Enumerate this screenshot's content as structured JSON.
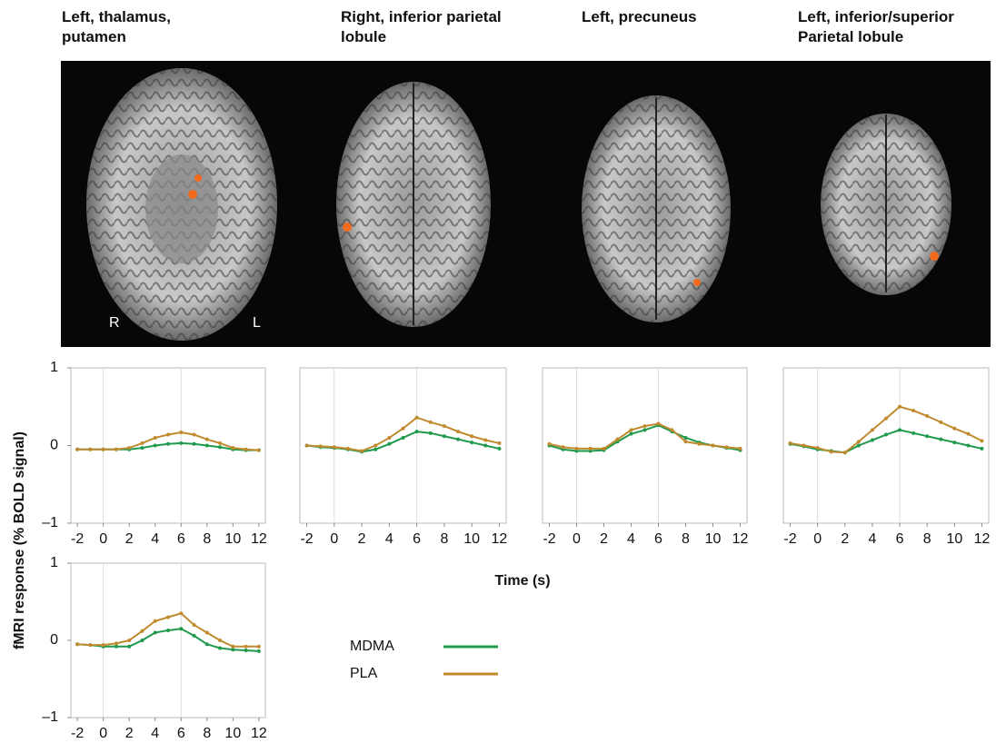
{
  "column_titles": [
    "Left, thalamus, putamen",
    "Right, inferior parietal lobule",
    "Left, precuneus",
    "Left, inferior/superior Parietal lobule"
  ],
  "image_labels": [
    "R",
    "L"
  ],
  "ylabel": "fMRI response (% BOLD signal)",
  "xlabel": "Time (s)",
  "legend": [
    {
      "name": "MDMA",
      "color": "#1f9a4c"
    },
    {
      "name": "PLA",
      "color": "#c08a2e"
    }
  ],
  "chart_data": [
    {
      "type": "line",
      "x": [
        -2,
        -1,
        0,
        1,
        2,
        3,
        4,
        5,
        6,
        7,
        8,
        9,
        10,
        11,
        12
      ],
      "xlim": [
        -2.5,
        12.5
      ],
      "xticks": [
        -2,
        0,
        2,
        4,
        6,
        8,
        10,
        12
      ],
      "vgrid": [
        0,
        6
      ],
      "ylim": [
        -1,
        1
      ],
      "yticks": [
        {
          "value": -1,
          "label": "–1"
        },
        0,
        1
      ],
      "series": [
        {
          "values": [
            -0.05,
            -0.05,
            -0.05,
            -0.05,
            -0.05,
            -0.03,
            0,
            0.02,
            0.03,
            0.02,
            0,
            -0.02,
            -0.05,
            -0.06,
            -0.06
          ]
        },
        {
          "values": [
            -0.05,
            -0.05,
            -0.05,
            -0.05,
            -0.03,
            0.03,
            0.1,
            0.14,
            0.17,
            0.14,
            0.08,
            0.03,
            -0.03,
            -0.05,
            -0.06
          ]
        }
      ]
    },
    {
      "type": "line",
      "x": [
        -2,
        -1,
        0,
        1,
        2,
        3,
        4,
        5,
        6,
        7,
        8,
        9,
        10,
        11,
        12
      ],
      "xlim": [
        -2.5,
        12.5
      ],
      "xticks": [
        -2,
        0,
        2,
        4,
        6,
        8,
        10,
        12
      ],
      "vgrid": [
        0,
        6
      ],
      "ylim": [
        -1,
        1
      ],
      "series": [
        {
          "values": [
            0,
            -0.02,
            -0.03,
            -0.05,
            -0.08,
            -0.05,
            0.02,
            0.1,
            0.18,
            0.16,
            0.12,
            0.08,
            0.04,
            0,
            -0.04
          ]
        },
        {
          "values": [
            0,
            -0.01,
            -0.02,
            -0.04,
            -0.07,
            0,
            0.1,
            0.22,
            0.36,
            0.3,
            0.25,
            0.18,
            0.12,
            0.07,
            0.03
          ]
        }
      ]
    },
    {
      "type": "line",
      "x": [
        -2,
        -1,
        0,
        1,
        2,
        3,
        4,
        5,
        6,
        7,
        8,
        9,
        10,
        11,
        12
      ],
      "xlim": [
        -2.5,
        12.5
      ],
      "xticks": [
        -2,
        0,
        2,
        4,
        6,
        8,
        10,
        12
      ],
      "vgrid": [
        0,
        6
      ],
      "ylim": [
        -1,
        1
      ],
      "series": [
        {
          "values": [
            0,
            -0.05,
            -0.07,
            -0.07,
            -0.06,
            0.05,
            0.15,
            0.2,
            0.26,
            0.18,
            0.1,
            0.04,
            0,
            -0.03,
            -0.06
          ]
        },
        {
          "values": [
            0.02,
            -0.02,
            -0.04,
            -0.04,
            -0.04,
            0.08,
            0.2,
            0.25,
            0.28,
            0.2,
            0.05,
            0.02,
            0,
            -0.02,
            -0.04
          ]
        }
      ]
    },
    {
      "type": "line",
      "x": [
        -2,
        -1,
        0,
        1,
        2,
        3,
        4,
        5,
        6,
        7,
        8,
        9,
        10,
        11,
        12
      ],
      "xlim": [
        -2.5,
        12.5
      ],
      "xticks": [
        -2,
        0,
        2,
        4,
        6,
        8,
        10,
        12
      ],
      "vgrid": [
        0,
        6
      ],
      "ylim": [
        -1,
        1
      ],
      "series": [
        {
          "values": [
            0.02,
            -0.01,
            -0.05,
            -0.07,
            -0.09,
            0,
            0.07,
            0.14,
            0.2,
            0.16,
            0.12,
            0.08,
            0.04,
            0,
            -0.04
          ]
        },
        {
          "values": [
            0.03,
            0,
            -0.03,
            -0.08,
            -0.09,
            0.05,
            0.2,
            0.35,
            0.5,
            0.45,
            0.38,
            0.3,
            0.22,
            0.15,
            0.06
          ]
        }
      ]
    },
    {
      "type": "line",
      "x": [
        -2,
        -1,
        0,
        1,
        2,
        3,
        4,
        5,
        6,
        7,
        8,
        9,
        10,
        11,
        12
      ],
      "xlim": [
        -2.5,
        12.5
      ],
      "xticks": [
        -2,
        0,
        2,
        4,
        6,
        8,
        10,
        12
      ],
      "vgrid": [
        0,
        6
      ],
      "ylim": [
        -1,
        1
      ],
      "yticks": [
        {
          "value": -1,
          "label": "–1"
        },
        0,
        1
      ],
      "series": [
        {
          "values": [
            -0.05,
            -0.06,
            -0.08,
            -0.08,
            -0.08,
            0,
            0.1,
            0.13,
            0.15,
            0.06,
            -0.05,
            -0.1,
            -0.12,
            -0.13,
            -0.14
          ]
        },
        {
          "values": [
            -0.05,
            -0.06,
            -0.06,
            -0.04,
            0,
            0.12,
            0.25,
            0.3,
            0.35,
            0.2,
            0.1,
            0,
            -0.08,
            -0.08,
            -0.08
          ]
        }
      ]
    }
  ]
}
